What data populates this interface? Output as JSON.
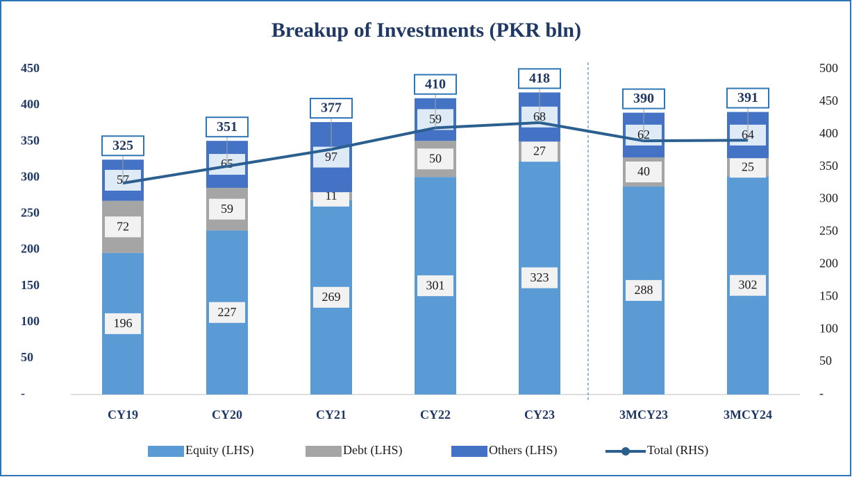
{
  "chart_data": {
    "type": "bar",
    "stacked": true,
    "title": "Breakup of Investments (PKR bln)",
    "categories": [
      "CY19",
      "CY20",
      "CY21",
      "CY22",
      "CY23",
      "3MCY23",
      "3MCY24"
    ],
    "series": [
      {
        "name": "Equity (LHS)",
        "color": "#5b9bd5",
        "values": [
          196,
          227,
          269,
          301,
          323,
          288,
          302
        ]
      },
      {
        "name": "Debt (LHS)",
        "color": "#a5a5a5",
        "values": [
          72,
          59,
          11,
          50,
          27,
          40,
          25
        ]
      },
      {
        "name": "Others (LHS)",
        "color": "#4472c4",
        "values": [
          57,
          65,
          97,
          59,
          68,
          62,
          64
        ]
      },
      {
        "name": "Total (RHS)",
        "color": "#2a5f8f",
        "type": "line",
        "axis": "y2",
        "values": [
          325,
          351,
          377,
          410,
          418,
          390,
          391
        ]
      }
    ],
    "ylim": [
      0,
      450
    ],
    "yticks": [
      {
        "value": 0,
        "label": "-"
      },
      50,
      100,
      150,
      200,
      250,
      300,
      350,
      400,
      450
    ],
    "y2lim": [
      0,
      500
    ],
    "y2ticks": [
      {
        "value": 0,
        "label": "-"
      },
      50,
      100,
      150,
      200,
      250,
      300,
      350,
      400,
      450,
      500
    ],
    "legend": "bottom"
  }
}
